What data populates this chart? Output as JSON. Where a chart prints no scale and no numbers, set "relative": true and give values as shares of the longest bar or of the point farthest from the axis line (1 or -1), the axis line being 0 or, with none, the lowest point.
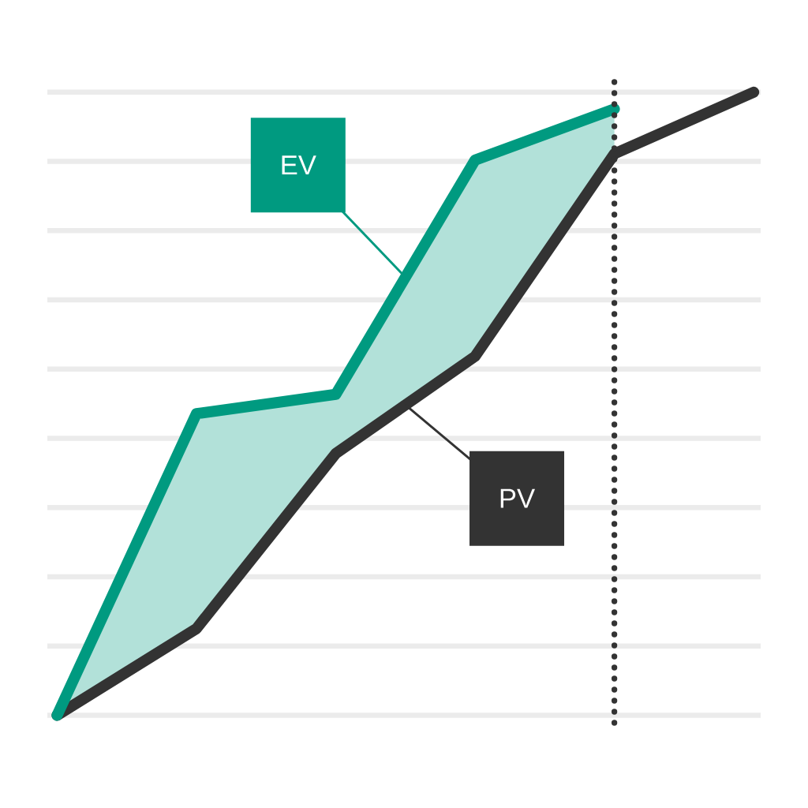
{
  "chart_data": {
    "type": "line",
    "relative": true,
    "categories": [
      null,
      null,
      null,
      null,
      null,
      null
    ],
    "series": [
      {
        "name": "EV",
        "color": "#009a80",
        "values": [
          0,
          0.484,
          0.515,
          0.891,
          0.973,
          null
        ],
        "lower": [
          0,
          0.139,
          0.42,
          0.576,
          0.901,
          null
        ],
        "upper": [
          0,
          0.484,
          0.515,
          0.891,
          0.973,
          null
        ]
      },
      {
        "name": "PV",
        "color": "#333333",
        "values": [
          0,
          0.139,
          0.42,
          0.576,
          0.901,
          1
        ]
      }
    ],
    "grid": "y",
    "line_style": "solid"
  }
}
